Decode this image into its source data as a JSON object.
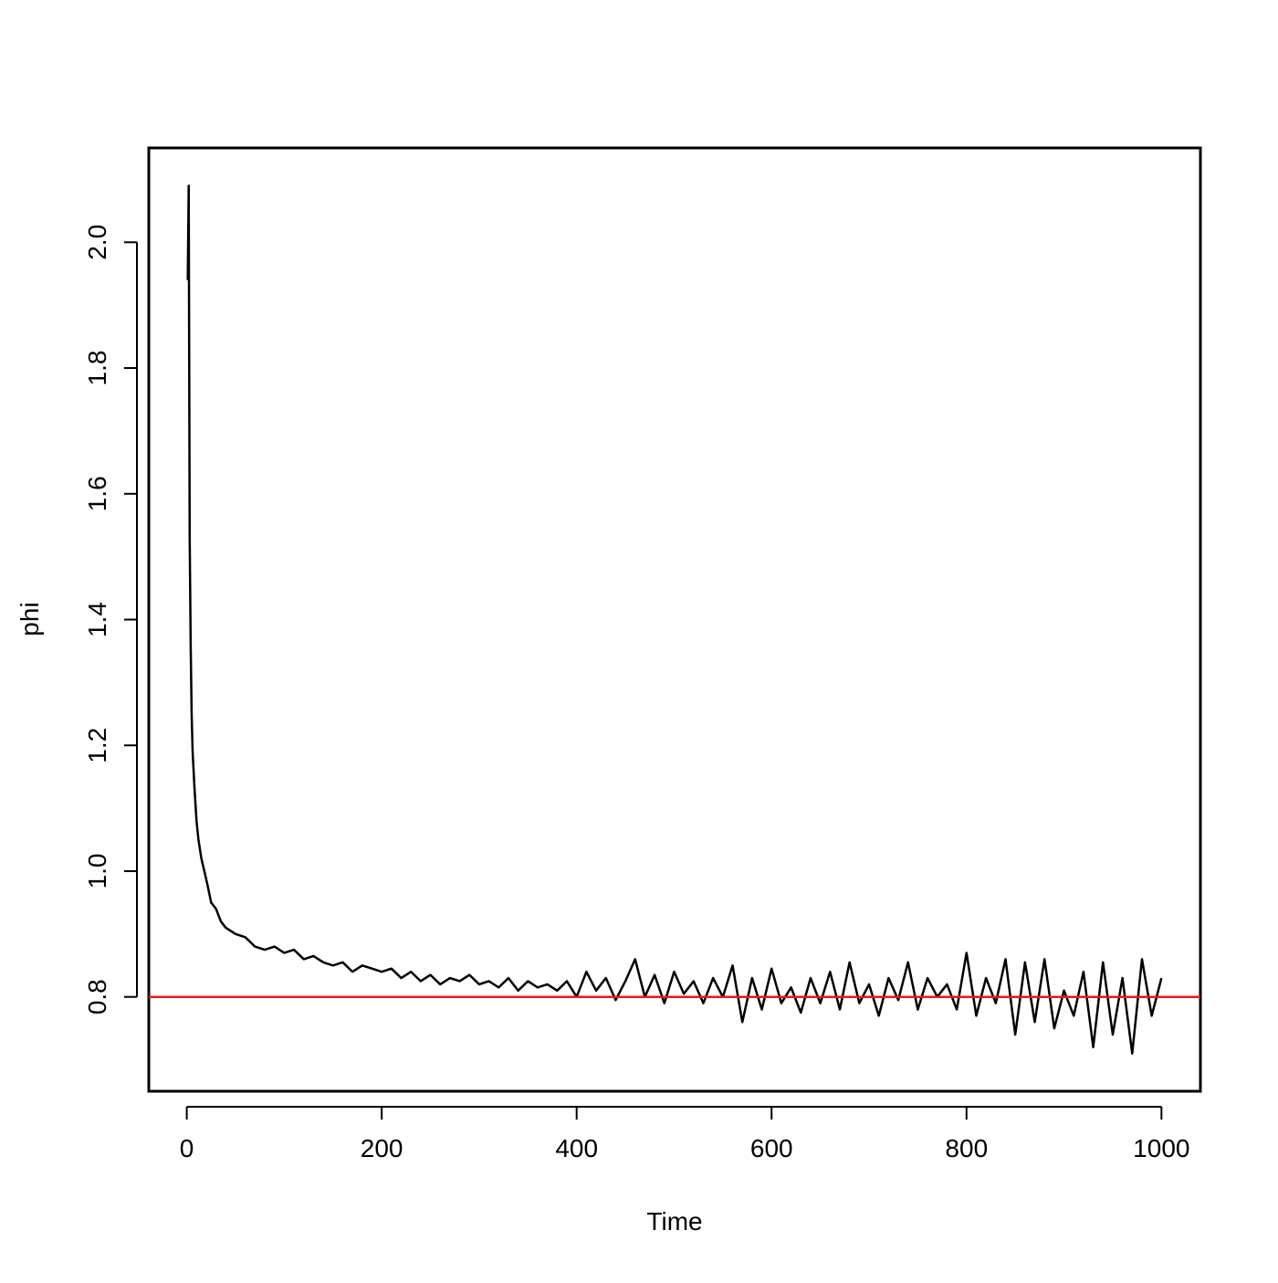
{
  "chart_data": {
    "type": "line",
    "x_label": "Time",
    "y_label": "phi",
    "x": [
      1,
      2,
      3,
      4,
      5,
      6,
      8,
      10,
      12,
      15,
      18,
      21,
      25,
      30,
      35,
      40,
      50,
      60,
      70,
      80,
      90,
      100,
      110,
      120,
      130,
      140,
      150,
      160,
      170,
      180,
      190,
      200,
      210,
      220,
      230,
      240,
      250,
      260,
      270,
      280,
      290,
      300,
      310,
      320,
      330,
      340,
      350,
      360,
      370,
      380,
      390,
      400,
      410,
      420,
      430,
      440,
      450,
      460,
      470,
      480,
      490,
      500,
      510,
      520,
      530,
      540,
      550,
      560,
      570,
      580,
      590,
      600,
      610,
      620,
      630,
      640,
      650,
      660,
      670,
      680,
      690,
      700,
      710,
      720,
      730,
      740,
      750,
      760,
      770,
      780,
      790,
      800,
      810,
      820,
      830,
      840,
      850,
      860,
      870,
      880,
      890,
      900,
      910,
      920,
      930,
      940,
      950,
      960,
      970,
      980,
      990,
      1000
    ],
    "series": [
      {
        "name": "phi",
        "color": "#000000",
        "values": [
          1.94,
          2.09,
          1.53,
          1.36,
          1.25,
          1.19,
          1.13,
          1.08,
          1.05,
          1.02,
          1.0,
          0.98,
          0.95,
          0.94,
          0.92,
          0.91,
          0.9,
          0.895,
          0.88,
          0.875,
          0.88,
          0.87,
          0.875,
          0.86,
          0.865,
          0.855,
          0.85,
          0.855,
          0.84,
          0.85,
          0.845,
          0.84,
          0.845,
          0.83,
          0.84,
          0.825,
          0.835,
          0.82,
          0.83,
          0.825,
          0.835,
          0.82,
          0.825,
          0.815,
          0.83,
          0.81,
          0.825,
          0.815,
          0.82,
          0.81,
          0.825,
          0.8,
          0.84,
          0.81,
          0.83,
          0.795,
          0.825,
          0.86,
          0.8,
          0.835,
          0.79,
          0.84,
          0.805,
          0.825,
          0.79,
          0.83,
          0.8,
          0.85,
          0.76,
          0.83,
          0.78,
          0.845,
          0.79,
          0.815,
          0.775,
          0.83,
          0.79,
          0.84,
          0.78,
          0.855,
          0.79,
          0.82,
          0.77,
          0.83,
          0.795,
          0.855,
          0.78,
          0.83,
          0.8,
          0.82,
          0.78,
          0.87,
          0.77,
          0.83,
          0.79,
          0.86,
          0.74,
          0.855,
          0.76,
          0.86,
          0.75,
          0.81,
          0.77,
          0.84,
          0.72,
          0.855,
          0.74,
          0.83,
          0.71,
          0.86,
          0.77,
          0.83
        ]
      }
    ],
    "hline": {
      "value": 0.8,
      "color": "#e41a1c"
    },
    "xlim": [
      -38.96,
      1039.96
    ],
    "ylim": [
      0.65,
      2.15
    ],
    "xticks": [
      0,
      200,
      400,
      600,
      800,
      1000
    ],
    "yticks": [
      0.8,
      {
        "value": 1.0,
        "label": "1.0"
      },
      1.2,
      1.4,
      1.6,
      1.8,
      {
        "value": 2.0,
        "label": "2.0"
      }
    ]
  }
}
